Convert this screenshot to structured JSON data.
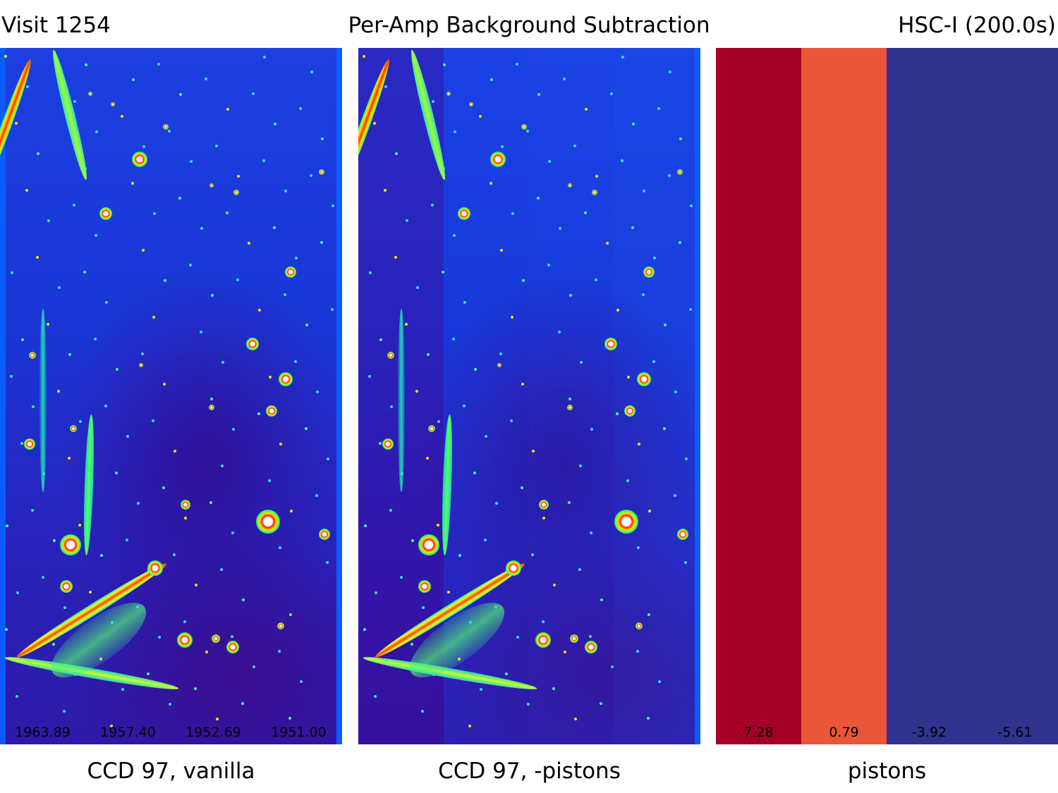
{
  "header": {
    "left": "Visit 1254",
    "center": "Per-Amp Background Subtraction",
    "right": "HSC-I (200.0s)"
  },
  "panels": [
    {
      "caption": "CCD 97, vanilla",
      "amp_labels": [
        "1963.89",
        "1957.40",
        "1952.69",
        "1951.00"
      ]
    },
    {
      "caption": "CCD 97, -pistons",
      "amp_labels": []
    },
    {
      "caption": "pistons",
      "amp_labels": [
        "7.28",
        "0.79",
        "-3.92",
        "-5.61"
      ],
      "colors": [
        "#a20026",
        "#ea5639",
        "#31348e",
        "#31348e"
      ]
    }
  ]
}
